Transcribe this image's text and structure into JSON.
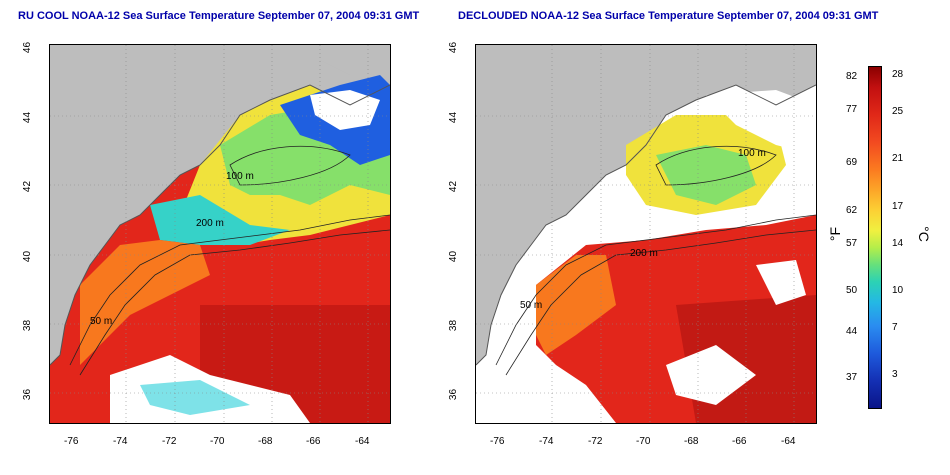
{
  "left_panel": {
    "title": "RU COOL NOAA-12 Sea Surface Temperature September 07, 2004 09:31 GMT"
  },
  "right_panel": {
    "title": "DECLOUDED NOAA-12 Sea Surface Temperature September 07, 2004 09:31 GMT"
  },
  "axes": {
    "lon_ticks": [
      "-76",
      "-74",
      "-72",
      "-70",
      "-68",
      "-66",
      "-64"
    ],
    "lat_ticks": [
      "46",
      "44",
      "42",
      "40",
      "38",
      "36"
    ]
  },
  "contour_labels": [
    "100 m",
    "50 m",
    "200 m",
    "50 m",
    "200 m"
  ],
  "colorbar": {
    "f_unit": "°F",
    "c_unit": "°C",
    "f_ticks": [
      "82",
      "77",
      "69",
      "62",
      "57",
      "50",
      "44",
      "37"
    ],
    "c_ticks": [
      "28",
      "25",
      "21",
      "17",
      "14",
      "10",
      "7",
      "3"
    ]
  },
  "colors": {
    "land": "#bdbdbd",
    "warm": "#e8251c",
    "cool": "#1f5fe0",
    "mid": "#f5e23c",
    "title": "#0000aa"
  }
}
